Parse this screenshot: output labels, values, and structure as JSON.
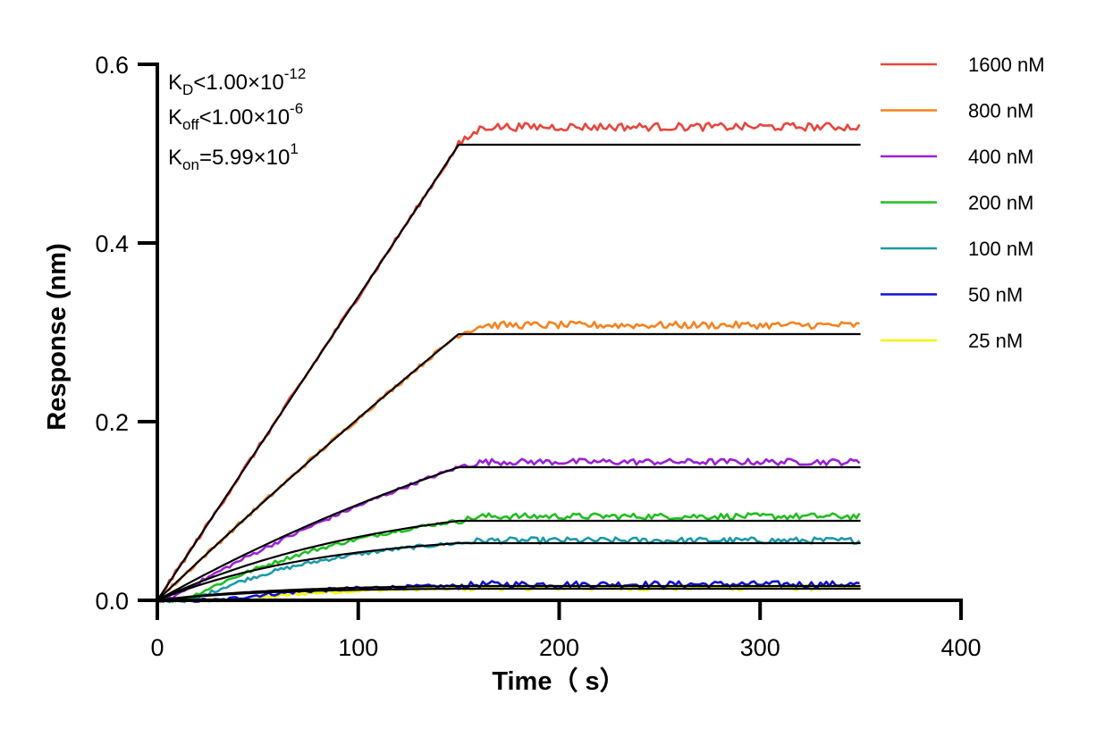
{
  "chart_data": {
    "type": "line",
    "xlabel": "Time（ s）",
    "ylabel": "Response (nm)",
    "xlim": [
      0,
      400
    ],
    "ylim": [
      0,
      0.6
    ],
    "x_ticks": [
      0,
      100,
      200,
      300,
      400
    ],
    "y_ticks": [
      0.0,
      0.2,
      0.4,
      0.6
    ],
    "x_tick_labels": [
      "0",
      "100",
      "200",
      "300",
      "400"
    ],
    "y_tick_labels": [
      "0.0",
      "0.2",
      "0.4",
      "0.6"
    ],
    "grid": false,
    "legend_position": "top-right",
    "association_end": 150,
    "experiment_end": 350,
    "kinetics": {
      "kd": {
        "symbol": "K",
        "sub": "D",
        "relation": "<",
        "mantissa": "1.00×10",
        "exp": "-12"
      },
      "koff": {
        "symbol": "K",
        "sub": "off",
        "relation": "<",
        "mantissa": "1.00×10",
        "exp": "-6"
      },
      "kon": {
        "symbol": "K",
        "sub": "on",
        "relation": "=",
        "mantissa": "5.99×10",
        "exp": "1"
      }
    },
    "fit_color": "#000000",
    "series": [
      {
        "name": "1600 nM",
        "color": "#e8453c",
        "plateau": 0.51,
        "observed_plateau": 0.53,
        "noise": 0.0045
      },
      {
        "name": "800 nM",
        "color": "#f5821f",
        "plateau": 0.298,
        "observed_plateau": 0.308,
        "noise": 0.004
      },
      {
        "name": "400 nM",
        "color": "#9b1fd6",
        "plateau": 0.149,
        "observed_plateau": 0.155,
        "noise": 0.0035
      },
      {
        "name": "200 nM",
        "color": "#1fbf1f",
        "plateau": 0.089,
        "observed_plateau": 0.094,
        "noise": 0.0035
      },
      {
        "name": "100 nM",
        "color": "#1a9aaa",
        "plateau": 0.064,
        "observed_plateau": 0.067,
        "noise": 0.0035
      },
      {
        "name": "50 nM",
        "color": "#1010d0",
        "plateau": 0.016,
        "observed_plateau": 0.018,
        "noise": 0.0035
      },
      {
        "name": "25 nM",
        "color": "#f5f500",
        "plateau": 0.013,
        "observed_plateau": 0.014,
        "noise": 0.003
      }
    ]
  }
}
